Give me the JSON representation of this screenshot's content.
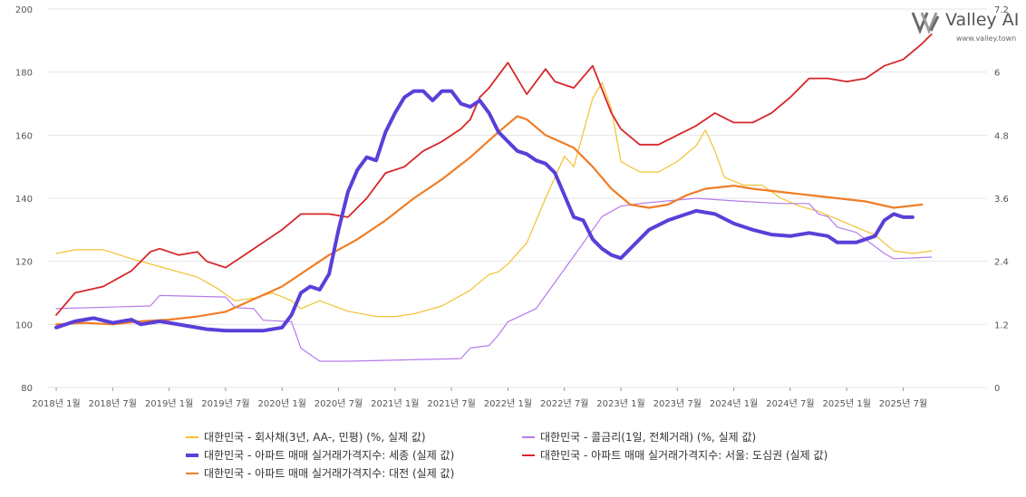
{
  "brand": {
    "name": "Valley AI",
    "url": "www.valley.town"
  },
  "colors": {
    "corp_bond": "#f2c12e",
    "call_rate": "#b57bea",
    "sejong": "#5a3fd8",
    "seoul_core": "#d62728",
    "daejeon": "#f07d26"
  },
  "chart_data": {
    "type": "line",
    "x_axis": {
      "ticks": [
        "2018년 1월",
        "2018년 7월",
        "2019년 1월",
        "2019년 7월",
        "2020년 1월",
        "2020년 7월",
        "2021년 1월",
        "2021년 7월",
        "2022년 1월",
        "2022년 7월",
        "2023년 1월",
        "2023년 7월",
        "2024년 1월",
        "2024년 7월",
        "2025년 1월",
        "2025년 7월"
      ],
      "range": [
        "2018-01",
        "2025-10"
      ]
    },
    "y_left": {
      "min": 80,
      "max": 200,
      "ticks": [
        "80",
        "100",
        "120",
        "140",
        "160",
        "180",
        "200"
      ]
    },
    "y_right": {
      "min": 0,
      "max": 7.2,
      "ticks": [
        "0",
        "1.2",
        "2.4",
        "3.6",
        "4.8",
        "6",
        "7.2"
      ]
    },
    "grid": "horizontal",
    "legend_position": "bottom",
    "series": [
      {
        "name": "대한민국 - 회사채(3년, AA-, 민평) (%, 실제 값)",
        "axis": "right",
        "color_key": "corp_bond",
        "width": 1.2,
        "points": [
          [
            "2018-01",
            2.55
          ],
          [
            "2018-03",
            2.62
          ],
          [
            "2018-06",
            2.62
          ],
          [
            "2018-09",
            2.45
          ],
          [
            "2018-12",
            2.3
          ],
          [
            "2019-02",
            2.2
          ],
          [
            "2019-04",
            2.1
          ],
          [
            "2019-06",
            1.9
          ],
          [
            "2019-08",
            1.65
          ],
          [
            "2019-10",
            1.7
          ],
          [
            "2019-12",
            1.8
          ],
          [
            "2020-02",
            1.65
          ],
          [
            "2020-03",
            1.5
          ],
          [
            "2020-05",
            1.65
          ],
          [
            "2020-08",
            1.45
          ],
          [
            "2020-11",
            1.35
          ],
          [
            "2021-01",
            1.35
          ],
          [
            "2021-03",
            1.4
          ],
          [
            "2021-06",
            1.55
          ],
          [
            "2021-09",
            1.85
          ],
          [
            "2021-11",
            2.15
          ],
          [
            "2021-12",
            2.2
          ],
          [
            "2022-01",
            2.35
          ],
          [
            "2022-03",
            2.75
          ],
          [
            "2022-05",
            3.6
          ],
          [
            "2022-07",
            4.4
          ],
          [
            "2022-08",
            4.2
          ],
          [
            "2022-10",
            5.5
          ],
          [
            "2022-11",
            5.8
          ],
          [
            "2022-12",
            5.3
          ],
          [
            "2023-01",
            4.3
          ],
          [
            "2023-03",
            4.1
          ],
          [
            "2023-05",
            4.1
          ],
          [
            "2023-07",
            4.3
          ],
          [
            "2023-09",
            4.6
          ],
          [
            "2023-10",
            4.9
          ],
          [
            "2023-11",
            4.5
          ],
          [
            "2023-12",
            4.0
          ],
          [
            "2024-02",
            3.85
          ],
          [
            "2024-04",
            3.85
          ],
          [
            "2024-06",
            3.6
          ],
          [
            "2024-08",
            3.45
          ],
          [
            "2024-10",
            3.35
          ],
          [
            "2024-12",
            3.2
          ],
          [
            "2025-02",
            3.05
          ],
          [
            "2025-04",
            2.9
          ],
          [
            "2025-06",
            2.6
          ],
          [
            "2025-08",
            2.55
          ],
          [
            "2025-10",
            2.6
          ]
        ]
      },
      {
        "name": "대한민국 - 콜금리(1일, 전체거래) (%, 실제 값)",
        "axis": "right",
        "color_key": "call_rate",
        "width": 1.2,
        "points": [
          [
            "2018-01",
            1.5
          ],
          [
            "2018-11",
            1.55
          ],
          [
            "2018-12",
            1.75
          ],
          [
            "2019-07",
            1.72
          ],
          [
            "2019-08",
            1.52
          ],
          [
            "2019-10",
            1.5
          ],
          [
            "2019-11",
            1.28
          ],
          [
            "2020-02",
            1.25
          ],
          [
            "2020-03",
            0.75
          ],
          [
            "2020-05",
            0.5
          ],
          [
            "2020-08",
            0.5
          ],
          [
            "2021-08",
            0.55
          ],
          [
            "2021-09",
            0.75
          ],
          [
            "2021-11",
            0.8
          ],
          [
            "2021-12",
            1.0
          ],
          [
            "2022-01",
            1.25
          ],
          [
            "2022-04",
            1.5
          ],
          [
            "2022-05",
            1.75
          ],
          [
            "2022-07",
            2.25
          ],
          [
            "2022-08",
            2.5
          ],
          [
            "2022-10",
            3.0
          ],
          [
            "2022-11",
            3.25
          ],
          [
            "2023-01",
            3.45
          ],
          [
            "2023-03",
            3.5
          ],
          [
            "2023-06",
            3.55
          ],
          [
            "2023-09",
            3.6
          ],
          [
            "2024-01",
            3.55
          ],
          [
            "2024-06",
            3.5
          ],
          [
            "2024-09",
            3.5
          ],
          [
            "2024-10",
            3.3
          ],
          [
            "2024-11",
            3.25
          ],
          [
            "2024-12",
            3.05
          ],
          [
            "2025-02",
            2.95
          ],
          [
            "2025-05",
            2.55
          ],
          [
            "2025-06",
            2.45
          ],
          [
            "2025-10",
            2.48
          ]
        ]
      },
      {
        "name": "대한민국 - 아파트 매매 실거래가격지수: 세종 (실제 값)",
        "axis": "left",
        "color_key": "sejong",
        "width": 4,
        "points": [
          [
            "2018-01",
            99
          ],
          [
            "2018-03",
            101
          ],
          [
            "2018-05",
            102
          ],
          [
            "2018-07",
            100.5
          ],
          [
            "2018-09",
            101.5
          ],
          [
            "2018-10",
            100
          ],
          [
            "2018-12",
            101
          ],
          [
            "2019-03",
            99.5
          ],
          [
            "2019-05",
            98.5
          ],
          [
            "2019-07",
            98
          ],
          [
            "2019-09",
            98
          ],
          [
            "2019-11",
            98
          ],
          [
            "2020-01",
            99
          ],
          [
            "2020-02",
            103
          ],
          [
            "2020-03",
            110
          ],
          [
            "2020-04",
            112
          ],
          [
            "2020-05",
            111
          ],
          [
            "2020-06",
            116
          ],
          [
            "2020-07",
            130
          ],
          [
            "2020-08",
            142
          ],
          [
            "2020-09",
            149
          ],
          [
            "2020-10",
            153
          ],
          [
            "2020-11",
            152
          ],
          [
            "2020-12",
            161
          ],
          [
            "2021-01",
            167
          ],
          [
            "2021-02",
            172
          ],
          [
            "2021-03",
            174
          ],
          [
            "2021-04",
            174
          ],
          [
            "2021-05",
            171
          ],
          [
            "2021-06",
            174
          ],
          [
            "2021-07",
            174
          ],
          [
            "2021-08",
            170
          ],
          [
            "2021-09",
            169
          ],
          [
            "2021-10",
            171
          ],
          [
            "2021-11",
            167
          ],
          [
            "2021-12",
            161
          ],
          [
            "2022-01",
            158
          ],
          [
            "2022-02",
            155
          ],
          [
            "2022-03",
            154
          ],
          [
            "2022-04",
            152
          ],
          [
            "2022-05",
            151
          ],
          [
            "2022-06",
            148
          ],
          [
            "2022-07",
            141
          ],
          [
            "2022-08",
            134
          ],
          [
            "2022-09",
            133
          ],
          [
            "2022-10",
            127
          ],
          [
            "2022-11",
            124
          ],
          [
            "2022-12",
            122
          ],
          [
            "2023-01",
            121
          ],
          [
            "2023-02",
            124
          ],
          [
            "2023-04",
            130
          ],
          [
            "2023-06",
            133
          ],
          [
            "2023-08",
            135
          ],
          [
            "2023-09",
            136
          ],
          [
            "2023-11",
            135
          ],
          [
            "2024-01",
            132
          ],
          [
            "2024-03",
            130
          ],
          [
            "2024-05",
            128.5
          ],
          [
            "2024-07",
            128
          ],
          [
            "2024-09",
            129
          ],
          [
            "2024-11",
            128
          ],
          [
            "2024-12",
            126
          ],
          [
            "2025-02",
            126
          ],
          [
            "2025-04",
            128
          ],
          [
            "2025-05",
            133
          ],
          [
            "2025-06",
            135
          ],
          [
            "2025-07",
            134
          ],
          [
            "2025-08",
            134
          ]
        ]
      },
      {
        "name": "대한민국 - 아파트 매매 실거래가격지수: 서울: 도심권 (실제 값)",
        "axis": "left",
        "color_key": "seoul_core",
        "width": 1.8,
        "points": [
          [
            "2018-01",
            103
          ],
          [
            "2018-03",
            110
          ],
          [
            "2018-06",
            112
          ],
          [
            "2018-09",
            117
          ],
          [
            "2018-11",
            123
          ],
          [
            "2018-12",
            124
          ],
          [
            "2019-02",
            122
          ],
          [
            "2019-04",
            123
          ],
          [
            "2019-05",
            120
          ],
          [
            "2019-07",
            118
          ],
          [
            "2019-09",
            122
          ],
          [
            "2019-11",
            126
          ],
          [
            "2020-01",
            130
          ],
          [
            "2020-03",
            135
          ],
          [
            "2020-04",
            135
          ],
          [
            "2020-06",
            135
          ],
          [
            "2020-08",
            134
          ],
          [
            "2020-10",
            140
          ],
          [
            "2020-12",
            148
          ],
          [
            "2021-02",
            150
          ],
          [
            "2021-04",
            155
          ],
          [
            "2021-06",
            158
          ],
          [
            "2021-08",
            162
          ],
          [
            "2021-09",
            165
          ],
          [
            "2021-10",
            172
          ],
          [
            "2021-11",
            175
          ],
          [
            "2022-01",
            183
          ],
          [
            "2022-03",
            173
          ],
          [
            "2022-05",
            181
          ],
          [
            "2022-06",
            177
          ],
          [
            "2022-08",
            175
          ],
          [
            "2022-10",
            182
          ],
          [
            "2022-12",
            167
          ],
          [
            "2023-01",
            162
          ],
          [
            "2023-03",
            157
          ],
          [
            "2023-05",
            157
          ],
          [
            "2023-07",
            160
          ],
          [
            "2023-09",
            163
          ],
          [
            "2023-11",
            167
          ],
          [
            "2024-01",
            164
          ],
          [
            "2024-03",
            164
          ],
          [
            "2024-05",
            167
          ],
          [
            "2024-07",
            172
          ],
          [
            "2024-09",
            178
          ],
          [
            "2024-11",
            178
          ],
          [
            "2025-01",
            177
          ],
          [
            "2025-03",
            178
          ],
          [
            "2025-05",
            182
          ],
          [
            "2025-07",
            184
          ],
          [
            "2025-09",
            189
          ],
          [
            "2025-10",
            192
          ]
        ]
      },
      {
        "name": "대한민국 - 아파트 매매 실거래가격지수: 대전 (실제 값)",
        "axis": "left",
        "color_key": "daejeon",
        "width": 2.2,
        "points": [
          [
            "2018-01",
            100
          ],
          [
            "2018-04",
            100.5
          ],
          [
            "2018-07",
            100
          ],
          [
            "2018-10",
            101
          ],
          [
            "2019-01",
            101.5
          ],
          [
            "2019-04",
            102.5
          ],
          [
            "2019-07",
            104
          ],
          [
            "2019-10",
            108
          ],
          [
            "2020-01",
            112
          ],
          [
            "2020-04",
            118
          ],
          [
            "2020-06",
            122
          ],
          [
            "2020-09",
            127
          ],
          [
            "2020-12",
            133
          ],
          [
            "2021-03",
            140
          ],
          [
            "2021-06",
            146
          ],
          [
            "2021-09",
            153
          ],
          [
            "2021-12",
            161
          ],
          [
            "2022-02",
            166
          ],
          [
            "2022-03",
            165
          ],
          [
            "2022-05",
            160
          ],
          [
            "2022-08",
            156
          ],
          [
            "2022-10",
            150
          ],
          [
            "2022-12",
            143
          ],
          [
            "2023-02",
            138
          ],
          [
            "2023-04",
            137
          ],
          [
            "2023-06",
            138
          ],
          [
            "2023-08",
            141
          ],
          [
            "2023-10",
            143
          ],
          [
            "2024-01",
            144
          ],
          [
            "2024-03",
            143
          ],
          [
            "2024-06",
            142
          ],
          [
            "2024-09",
            141
          ],
          [
            "2024-12",
            140
          ],
          [
            "2025-03",
            139
          ],
          [
            "2025-06",
            137
          ],
          [
            "2025-09",
            138
          ]
        ]
      }
    ],
    "legend": [
      {
        "label": "대한민국 - 회사채(3년, AA-, 민평) (%, 실제 값)",
        "color_key": "corp_bond"
      },
      {
        "label": "대한민국 - 콜금리(1일, 전체거래) (%, 실제 값)",
        "color_key": "call_rate"
      },
      {
        "label": "대한민국 - 아파트 매매 실거래가격지수: 세종 (실제 값)",
        "color_key": "sejong"
      },
      {
        "label": "대한민국 - 아파트 매매 실거래가격지수: 서울: 도심권 (실제 값)",
        "color_key": "seoul_core"
      },
      {
        "label": "대한민국 - 아파트 매매 실거래가격지수: 대전 (실제 값)",
        "color_key": "daejeon"
      }
    ]
  }
}
